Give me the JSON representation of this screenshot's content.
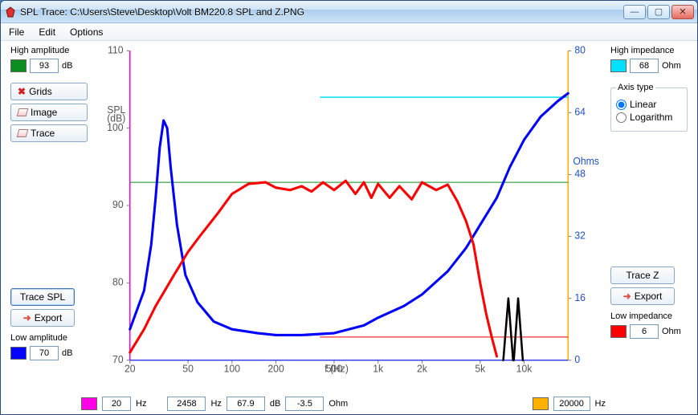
{
  "window": {
    "title": "SPL Trace: C:\\Users\\Steve\\Desktop\\Volt BM220.8 SPL and Z.PNG"
  },
  "menu": {
    "file": "File",
    "edit": "Edit",
    "options": "Options"
  },
  "left": {
    "high_label": "High amplitude",
    "high_value": "93",
    "high_unit": "dB",
    "high_color": "#0a8c1e",
    "grids_btn": "Grids",
    "image_btn": "Image",
    "trace_btn": "Trace",
    "trace_spl_btn": "Trace SPL",
    "export_btn": "Export",
    "low_label": "Low amplitude",
    "low_value": "70",
    "low_unit": "dB",
    "low_color": "#0000ff"
  },
  "right": {
    "high_label": "High impedance",
    "high_value": "68",
    "high_unit": "Ohm",
    "high_color": "#00e0ff",
    "axis_label": "Axis type",
    "linear": "Linear",
    "log": "Logarithm",
    "trace_z_btn": "Trace Z",
    "export_btn": "Export",
    "low_label": "Low impedance",
    "low_value": "6",
    "low_unit": "Ohm",
    "low_color": "#ff0000"
  },
  "bottom": {
    "left_swatch": "#ff00e6",
    "left_freq": "20",
    "left_unit": "Hz",
    "ro_freq": "2458",
    "ro_freq_unit": "Hz",
    "ro_db": "67.9",
    "ro_db_unit": "dB",
    "ro_ohm": "-3.5",
    "ro_ohm_unit": "Ohm",
    "right_swatch": "#ffb000",
    "right_freq": "20000",
    "right_unit": "Hz"
  },
  "chart": {
    "background": "#ffffff",
    "grid_color": "#808080",
    "plot_border": "#808080",
    "spl_axis_label": "SPL\n(dB)",
    "z_axis_label": "Ohms",
    "x_label": "f (Hz)",
    "spl_ticks": [
      70,
      80,
      90,
      100,
      110
    ],
    "spl_tick_labels": [
      "70",
      "80",
      "90",
      "100",
      "110"
    ],
    "z_ticks": [
      0,
      16,
      32,
      48,
      64,
      80
    ],
    "z_tick_labels": [
      "0",
      "16",
      "32",
      "48",
      "64",
      "80"
    ],
    "x_ticks": [
      20,
      50,
      100,
      200,
      500,
      1000,
      2000,
      5000,
      10000
    ],
    "x_tick_labels": [
      "20",
      "50",
      "100",
      "200",
      "500",
      "1k",
      "2k",
      "5k",
      "10k"
    ],
    "x_range": [
      20,
      20000
    ],
    "spl_range": [
      70,
      110
    ],
    "z_range": [
      0,
      80
    ],
    "marker_left_x": 20,
    "marker_left_color": "#ff00e6",
    "marker_right_x": 20000,
    "marker_right_color": "#ffb000",
    "guide_spl_93_color": "#0a8c1e",
    "guide_z_68_color": "#00e0ff",
    "guide_z_6_color": "#ff0000",
    "spl_trace_color": "#ff0000",
    "spl_trace_width": 3,
    "z_trace_color": "#0000ff",
    "z_trace_width": 3,
    "black_trace_color": "#000000",
    "spl_points": [
      [
        20,
        71
      ],
      [
        25,
        74
      ],
      [
        30,
        77
      ],
      [
        40,
        81
      ],
      [
        50,
        84
      ],
      [
        60,
        86
      ],
      [
        80,
        89
      ],
      [
        100,
        91.5
      ],
      [
        130,
        92.8
      ],
      [
        170,
        93
      ],
      [
        200,
        92.3
      ],
      [
        250,
        92
      ],
      [
        300,
        92.5
      ],
      [
        350,
        91.8
      ],
      [
        420,
        93
      ],
      [
        500,
        92
      ],
      [
        600,
        93.2
      ],
      [
        700,
        91.5
      ],
      [
        800,
        93
      ],
      [
        900,
        91
      ],
      [
        1000,
        92.8
      ],
      [
        1200,
        91
      ],
      [
        1400,
        92.5
      ],
      [
        1700,
        90.8
      ],
      [
        2000,
        93
      ],
      [
        2500,
        92
      ],
      [
        3000,
        92.7
      ],
      [
        3500,
        90.5
      ],
      [
        4000,
        88
      ],
      [
        4500,
        85
      ],
      [
        5000,
        80
      ],
      [
        5500,
        76
      ],
      [
        6000,
        73
      ],
      [
        6500,
        70.5
      ]
    ],
    "z_points": [
      [
        20,
        8
      ],
      [
        25,
        18
      ],
      [
        28,
        30
      ],
      [
        30,
        42
      ],
      [
        32,
        55
      ],
      [
        34,
        62
      ],
      [
        36,
        60
      ],
      [
        38,
        50
      ],
      [
        42,
        35
      ],
      [
        48,
        22
      ],
      [
        58,
        15
      ],
      [
        75,
        10
      ],
      [
        100,
        8
      ],
      [
        150,
        7
      ],
      [
        200,
        6.5
      ],
      [
        300,
        6.5
      ],
      [
        500,
        7
      ],
      [
        800,
        9
      ],
      [
        1000,
        11
      ],
      [
        1500,
        14
      ],
      [
        2000,
        17
      ],
      [
        3000,
        23
      ],
      [
        4000,
        29
      ],
      [
        5000,
        35
      ],
      [
        6500,
        42
      ],
      [
        8000,
        50
      ],
      [
        10000,
        57
      ],
      [
        13000,
        63
      ],
      [
        17000,
        67
      ],
      [
        20000,
        69
      ]
    ],
    "black_points_a": [
      [
        7200,
        70
      ],
      [
        7800,
        78
      ],
      [
        8400,
        70
      ]
    ],
    "black_points_b": [
      [
        8500,
        70
      ],
      [
        9100,
        78
      ],
      [
        9800,
        70
      ]
    ]
  }
}
